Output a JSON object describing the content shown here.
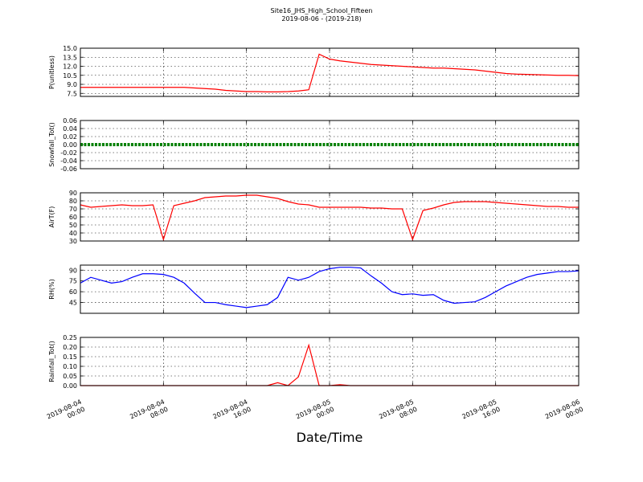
{
  "chart_data": {
    "type": "line",
    "title": "Site16_JHS_High_School_Fifteen",
    "subtitle": "2019-08-06 - (2019-218)",
    "xlabel": "Date/Time",
    "grid": true,
    "xlim": [
      "2019-08-04 00:00",
      "2019-08-06 00:00"
    ],
    "xticks": [
      "2019-08-04 00:00",
      "2019-08-04 08:00",
      "2019-08-04 16:00",
      "2019-08-05 00:00",
      "2019-08-05 08:00",
      "2019-08-05 16:00",
      "2019-08-06 00:00"
    ],
    "x": [
      "2019-08-04 00:00",
      "2019-08-04 01:00",
      "2019-08-04 02:00",
      "2019-08-04 03:00",
      "2019-08-04 04:00",
      "2019-08-04 05:00",
      "2019-08-04 06:00",
      "2019-08-04 07:00",
      "2019-08-04 08:00",
      "2019-08-04 09:00",
      "2019-08-04 10:00",
      "2019-08-04 11:00",
      "2019-08-04 12:00",
      "2019-08-04 13:00",
      "2019-08-04 14:00",
      "2019-08-04 15:00",
      "2019-08-04 16:00",
      "2019-08-04 17:00",
      "2019-08-04 18:00",
      "2019-08-04 19:00",
      "2019-08-04 20:00",
      "2019-08-04 21:00",
      "2019-08-04 22:00",
      "2019-08-04 23:00",
      "2019-08-05 00:00",
      "2019-08-05 01:00",
      "2019-08-05 02:00",
      "2019-08-05 03:00",
      "2019-08-05 04:00",
      "2019-08-05 05:00",
      "2019-08-05 06:00",
      "2019-08-05 07:00",
      "2019-08-05 08:00",
      "2019-08-05 09:00",
      "2019-08-05 10:00",
      "2019-08-05 11:00",
      "2019-08-05 12:00",
      "2019-08-05 13:00",
      "2019-08-05 14:00",
      "2019-08-05 15:00",
      "2019-08-05 16:00",
      "2019-08-05 17:00",
      "2019-08-05 18:00",
      "2019-08-05 19:00",
      "2019-08-05 20:00",
      "2019-08-05 21:00",
      "2019-08-05 22:00",
      "2019-08-05 23:00",
      "2019-08-06 00:00"
    ],
    "panels": [
      {
        "ylabel": "P(unitless)",
        "color": "#ff0000",
        "ylim": [
          7.0,
          15.0
        ],
        "yticks": [
          7.5,
          9,
          10.5,
          12,
          13.5,
          15
        ],
        "ytick_labels": [
          "7.5",
          "9.0",
          "10.5",
          "12.0",
          "13.5",
          "15.0"
        ],
        "values": [
          8.5,
          8.5,
          8.5,
          8.5,
          8.5,
          8.5,
          8.5,
          8.5,
          8.5,
          8.5,
          8.5,
          8.4,
          8.3,
          8.2,
          8.0,
          7.9,
          7.8,
          7.8,
          7.75,
          7.75,
          7.8,
          7.9,
          8.1,
          14.0,
          13.2,
          12.9,
          12.7,
          12.5,
          12.3,
          12.2,
          12.1,
          12.0,
          11.9,
          11.8,
          11.7,
          11.7,
          11.6,
          11.5,
          11.4,
          11.2,
          11.0,
          10.8,
          10.7,
          10.65,
          10.6,
          10.55,
          10.5,
          10.5,
          10.45
        ]
      },
      {
        "ylabel": "Snowfall_Tot()",
        "color": "#008000",
        "ylim": [
          -0.06,
          0.06
        ],
        "yticks": [
          -0.06,
          -0.04,
          -0.02,
          0,
          0.02,
          0.04,
          0.06
        ],
        "ytick_labels": [
          "-0.06",
          "-0.04",
          "-0.02",
          "0.00",
          "0.02",
          "0.04",
          "0.06"
        ],
        "values": [
          0,
          0,
          0,
          0,
          0,
          0,
          0,
          0,
          0,
          0,
          0,
          0,
          0,
          0,
          0,
          0,
          0,
          0,
          0,
          0,
          0,
          0,
          0,
          0,
          0,
          0,
          0,
          0,
          0,
          0,
          0,
          0,
          0,
          0,
          0,
          0,
          0,
          0,
          0,
          0,
          0,
          0,
          0,
          0,
          0,
          0,
          0,
          0,
          0
        ]
      },
      {
        "ylabel": "AirT(F)",
        "color": "#ff0000",
        "ylim": [
          30,
          90
        ],
        "yticks": [
          30,
          40,
          50,
          60,
          70,
          80,
          90
        ],
        "values": [
          75,
          72,
          73,
          74,
          75,
          74,
          74,
          75,
          32,
          74,
          77,
          80,
          84,
          85,
          86,
          86,
          87,
          87,
          85,
          83,
          79,
          76,
          75,
          72,
          72,
          72,
          72,
          72,
          71,
          71,
          70,
          70,
          32,
          68,
          71,
          75,
          78,
          79,
          79,
          79,
          78,
          77,
          76,
          75,
          74,
          73,
          73,
          72,
          72
        ]
      },
      {
        "ylabel": "RH(%)",
        "color": "#0000ff",
        "ylim": [
          30,
          97
        ],
        "yticks": [
          45,
          60,
          75,
          90
        ],
        "values": [
          72,
          80,
          76,
          72,
          74,
          80,
          85,
          85,
          84,
          80,
          72,
          58,
          45,
          45,
          42,
          40,
          38,
          40,
          42,
          52,
          80,
          76,
          80,
          88,
          92,
          94,
          94,
          93,
          82,
          72,
          60,
          56,
          57,
          55,
          56,
          48,
          44,
          45,
          46,
          52,
          60,
          68,
          74,
          80,
          84,
          86,
          88,
          88,
          89
        ]
      },
      {
        "ylabel": "Rainfall_Tot()",
        "color": "#ff0000",
        "ylim": [
          0,
          0.25
        ],
        "yticks": [
          0,
          0.05,
          0.1,
          0.15,
          0.2,
          0.25
        ],
        "ytick_labels": [
          "0.00",
          "0.05",
          "0.10",
          "0.15",
          "0.20",
          "0.25"
        ],
        "values": [
          0,
          0,
          0,
          0,
          0,
          0,
          0,
          0,
          0,
          0,
          0,
          0,
          0,
          0,
          0,
          0,
          0,
          0,
          0,
          0.015,
          0,
          0.045,
          0.21,
          0,
          0,
          0.005,
          0,
          0,
          0,
          0,
          0,
          0,
          0,
          0,
          0,
          0,
          0,
          0,
          0,
          0,
          0,
          0,
          0,
          0,
          0,
          0,
          0,
          0,
          0
        ]
      }
    ]
  }
}
